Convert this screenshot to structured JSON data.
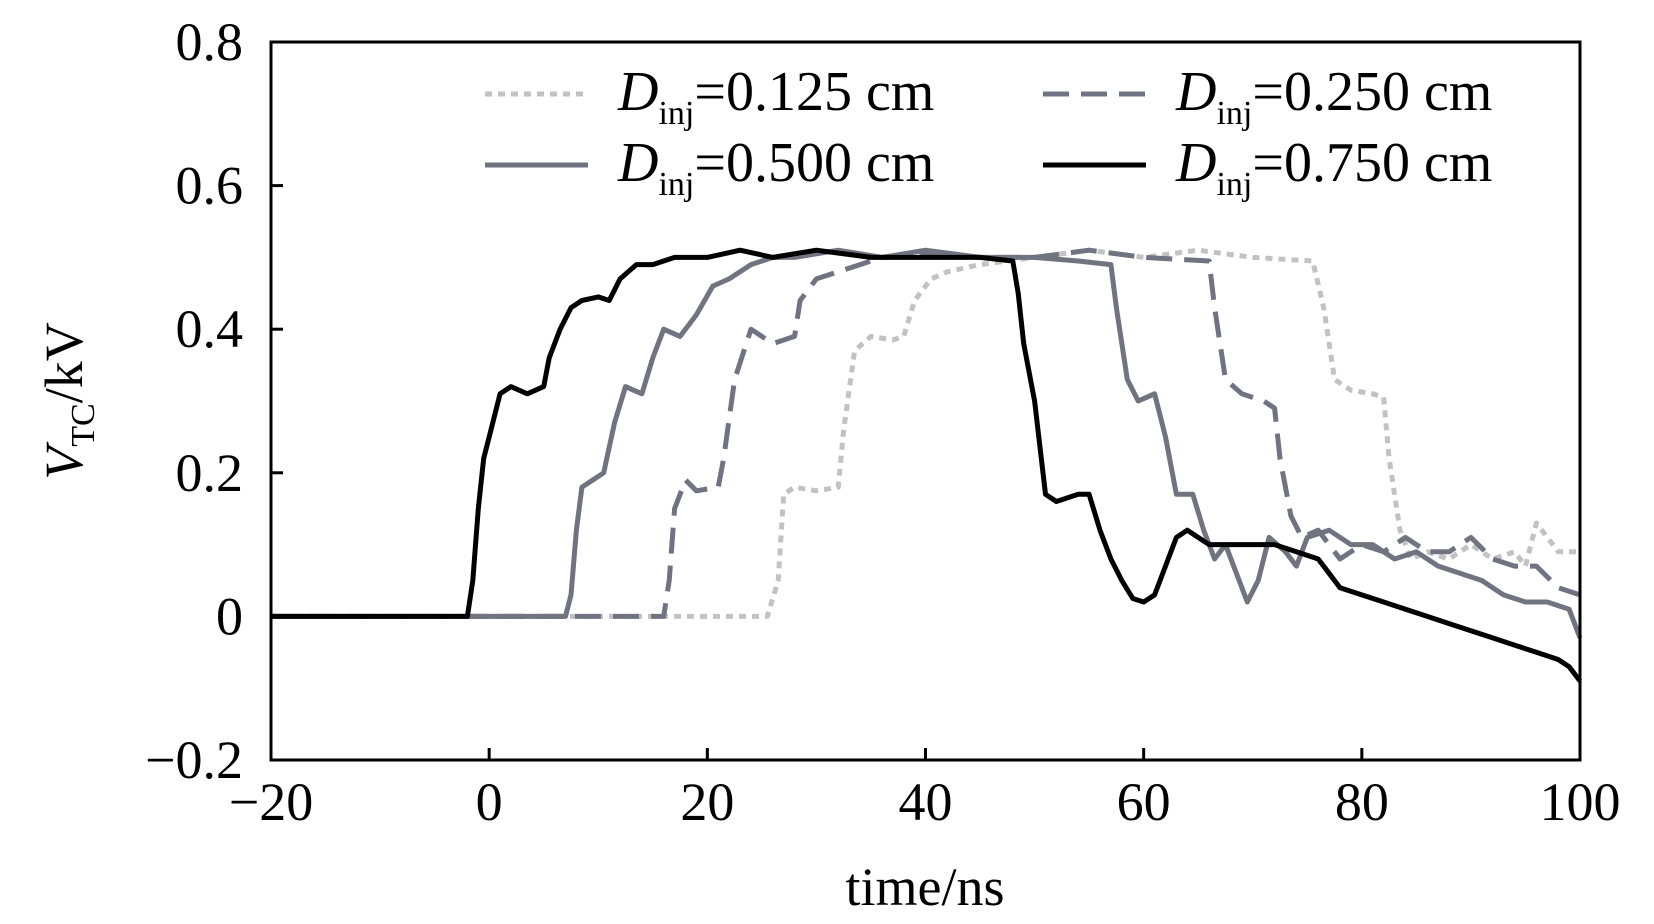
{
  "chart_data": {
    "type": "line",
    "title": "",
    "xlabel": "time/ns",
    "ylabel": {
      "main": "V",
      "sub": "TC",
      "rest": "/kV"
    },
    "xlim": [
      -20,
      100
    ],
    "ylim": [
      -0.2,
      0.8
    ],
    "xticks": [
      -20,
      0,
      20,
      40,
      60,
      80,
      100
    ],
    "xtick_labels": [
      "−20",
      "0",
      "20",
      "40",
      "60",
      "80",
      "100"
    ],
    "yticks": [
      -0.2,
      0,
      0.2,
      0.4,
      0.6,
      0.8
    ],
    "ytick_labels": [
      "−0.2",
      "0",
      "0.2",
      "0.4",
      "0.6",
      "0.8"
    ],
    "grid": false,
    "legend_position": "top-right",
    "series": [
      {
        "name": "D_inj=0.125 cm",
        "label_main": "D",
        "label_sub": "inj",
        "label_rest": "=0.125 cm",
        "color": "#c2c2c2",
        "dash": "dotted",
        "points": [
          [
            -20,
            0
          ],
          [
            10,
            0
          ],
          [
            20,
            0
          ],
          [
            25.5,
            0
          ],
          [
            26.5,
            0.05
          ],
          [
            27,
            0.17
          ],
          [
            28,
            0.18
          ],
          [
            30,
            0.175
          ],
          [
            32,
            0.18
          ],
          [
            32.5,
            0.26
          ],
          [
            33.5,
            0.37
          ],
          [
            35,
            0.39
          ],
          [
            37,
            0.385
          ],
          [
            38,
            0.39
          ],
          [
            39,
            0.44
          ],
          [
            40.5,
            0.47
          ],
          [
            42,
            0.48
          ],
          [
            45,
            0.49
          ],
          [
            50,
            0.5
          ],
          [
            55,
            0.51
          ],
          [
            60,
            0.5
          ],
          [
            65,
            0.51
          ],
          [
            70,
            0.5
          ],
          [
            75.5,
            0.495
          ],
          [
            76.5,
            0.43
          ],
          [
            77.5,
            0.33
          ],
          [
            79,
            0.315
          ],
          [
            81,
            0.31
          ],
          [
            82,
            0.305
          ],
          [
            82.5,
            0.22
          ],
          [
            83.5,
            0.12
          ],
          [
            84.5,
            0.08
          ],
          [
            86,
            0.09
          ],
          [
            88,
            0.08
          ],
          [
            90,
            0.1
          ],
          [
            92,
            0.08
          ],
          [
            94,
            0.09
          ],
          [
            95,
            0.07
          ],
          [
            96,
            0.13
          ],
          [
            97,
            0.11
          ],
          [
            98,
            0.09
          ],
          [
            100,
            0.09
          ]
        ]
      },
      {
        "name": "D_inj=0.250 cm",
        "label_main": "D",
        "label_sub": "inj",
        "label_rest": "=0.250 cm",
        "color": "#707482",
        "dash": "dashed",
        "points": [
          [
            -20,
            0
          ],
          [
            5,
            0
          ],
          [
            16,
            0
          ],
          [
            16.5,
            0.05
          ],
          [
            17,
            0.15
          ],
          [
            18,
            0.19
          ],
          [
            19,
            0.175
          ],
          [
            21,
            0.18
          ],
          [
            21.5,
            0.22
          ],
          [
            22.5,
            0.33
          ],
          [
            24,
            0.4
          ],
          [
            25,
            0.39
          ],
          [
            26,
            0.38
          ],
          [
            27,
            0.385
          ],
          [
            28,
            0.39
          ],
          [
            28.5,
            0.44
          ],
          [
            30,
            0.47
          ],
          [
            32,
            0.48
          ],
          [
            34,
            0.49
          ],
          [
            36,
            0.5
          ],
          [
            40,
            0.505
          ],
          [
            45,
            0.5
          ],
          [
            50,
            0.5
          ],
          [
            55,
            0.51
          ],
          [
            60,
            0.5
          ],
          [
            66,
            0.495
          ],
          [
            66.5,
            0.43
          ],
          [
            67.5,
            0.33
          ],
          [
            69,
            0.31
          ],
          [
            71,
            0.3
          ],
          [
            72,
            0.29
          ],
          [
            72.5,
            0.22
          ],
          [
            73.5,
            0.14
          ],
          [
            74.5,
            0.11
          ],
          [
            76,
            0.12
          ],
          [
            78,
            0.08
          ],
          [
            80,
            0.1
          ],
          [
            82,
            0.09
          ],
          [
            84,
            0.11
          ],
          [
            86,
            0.09
          ],
          [
            88,
            0.09
          ],
          [
            90,
            0.11
          ],
          [
            92,
            0.08
          ],
          [
            94,
            0.07
          ],
          [
            96,
            0.07
          ],
          [
            98,
            0.04
          ],
          [
            100,
            0.03
          ]
        ]
      },
      {
        "name": "D_inj=0.500 cm",
        "label_main": "D",
        "label_sub": "inj",
        "label_rest": "=0.500 cm",
        "color": "#6f7480",
        "dash": "solid",
        "points": [
          [
            -20,
            0
          ],
          [
            -10,
            0
          ],
          [
            7,
            0
          ],
          [
            7.5,
            0.03
          ],
          [
            8,
            0.12
          ],
          [
            8.5,
            0.18
          ],
          [
            9.5,
            0.19
          ],
          [
            10.5,
            0.2
          ],
          [
            11.5,
            0.27
          ],
          [
            12.5,
            0.32
          ],
          [
            14,
            0.31
          ],
          [
            15,
            0.36
          ],
          [
            16,
            0.4
          ],
          [
            17.5,
            0.39
          ],
          [
            19,
            0.42
          ],
          [
            20.5,
            0.46
          ],
          [
            22,
            0.47
          ],
          [
            24,
            0.49
          ],
          [
            26,
            0.5
          ],
          [
            28,
            0.5
          ],
          [
            32,
            0.51
          ],
          [
            36,
            0.5
          ],
          [
            40,
            0.51
          ],
          [
            45,
            0.5
          ],
          [
            50,
            0.5
          ],
          [
            54,
            0.495
          ],
          [
            57,
            0.49
          ],
          [
            57.5,
            0.43
          ],
          [
            58.5,
            0.33
          ],
          [
            59.5,
            0.3
          ],
          [
            61,
            0.31
          ],
          [
            62,
            0.25
          ],
          [
            63,
            0.17
          ],
          [
            64.5,
            0.17
          ],
          [
            65.5,
            0.12
          ],
          [
            66.5,
            0.08
          ],
          [
            67.5,
            0.1
          ],
          [
            68.5,
            0.06
          ],
          [
            69.5,
            0.02
          ],
          [
            70.5,
            0.05
          ],
          [
            71.5,
            0.11
          ],
          [
            73,
            0.09
          ],
          [
            74,
            0.07
          ],
          [
            75,
            0.11
          ],
          [
            77,
            0.12
          ],
          [
            79,
            0.1
          ],
          [
            81,
            0.1
          ],
          [
            83,
            0.08
          ],
          [
            85,
            0.09
          ],
          [
            87,
            0.07
          ],
          [
            89,
            0.06
          ],
          [
            91,
            0.05
          ],
          [
            93,
            0.03
          ],
          [
            95,
            0.02
          ],
          [
            97,
            0.02
          ],
          [
            99,
            0.01
          ],
          [
            100,
            -0.03
          ]
        ]
      },
      {
        "name": "D_inj=0.750 cm",
        "label_main": "D",
        "label_sub": "inj",
        "label_rest": "=0.750 cm",
        "color": "#000000",
        "dash": "solid",
        "points": [
          [
            -20,
            0
          ],
          [
            -2,
            0
          ],
          [
            -1.5,
            0.05
          ],
          [
            -1,
            0.15
          ],
          [
            -0.5,
            0.22
          ],
          [
            0,
            0.25
          ],
          [
            1,
            0.31
          ],
          [
            2,
            0.32
          ],
          [
            3.5,
            0.31
          ],
          [
            5,
            0.32
          ],
          [
            5.5,
            0.36
          ],
          [
            6.5,
            0.4
          ],
          [
            7.5,
            0.43
          ],
          [
            8.5,
            0.44
          ],
          [
            10,
            0.445
          ],
          [
            11,
            0.44
          ],
          [
            12,
            0.47
          ],
          [
            13.5,
            0.49
          ],
          [
            15,
            0.49
          ],
          [
            17,
            0.5
          ],
          [
            20,
            0.5
          ],
          [
            23,
            0.51
          ],
          [
            26,
            0.5
          ],
          [
            30,
            0.51
          ],
          [
            35,
            0.5
          ],
          [
            40,
            0.5
          ],
          [
            45,
            0.5
          ],
          [
            48,
            0.495
          ],
          [
            48.5,
            0.45
          ],
          [
            49,
            0.38
          ],
          [
            50,
            0.3
          ],
          [
            51,
            0.17
          ],
          [
            52,
            0.16
          ],
          [
            54,
            0.17
          ],
          [
            55,
            0.17
          ],
          [
            56,
            0.12
          ],
          [
            57,
            0.08
          ],
          [
            58,
            0.05
          ],
          [
            59,
            0.025
          ],
          [
            60,
            0.02
          ],
          [
            61,
            0.03
          ],
          [
            62,
            0.07
          ],
          [
            63,
            0.11
          ],
          [
            64,
            0.12
          ],
          [
            65,
            0.11
          ],
          [
            66,
            0.1
          ],
          [
            68,
            0.1
          ],
          [
            70,
            0.1
          ],
          [
            72,
            0.1
          ],
          [
            74,
            0.09
          ],
          [
            76,
            0.08
          ],
          [
            77,
            0.06
          ],
          [
            78,
            0.04
          ],
          [
            80,
            0.03
          ],
          [
            82,
            0.02
          ],
          [
            84,
            0.01
          ],
          [
            86,
            0.0
          ],
          [
            88,
            -0.01
          ],
          [
            90,
            -0.02
          ],
          [
            92,
            -0.03
          ],
          [
            94,
            -0.04
          ],
          [
            96,
            -0.05
          ],
          [
            98,
            -0.06
          ],
          [
            99,
            -0.07
          ],
          [
            100,
            -0.09
          ]
        ]
      }
    ]
  }
}
